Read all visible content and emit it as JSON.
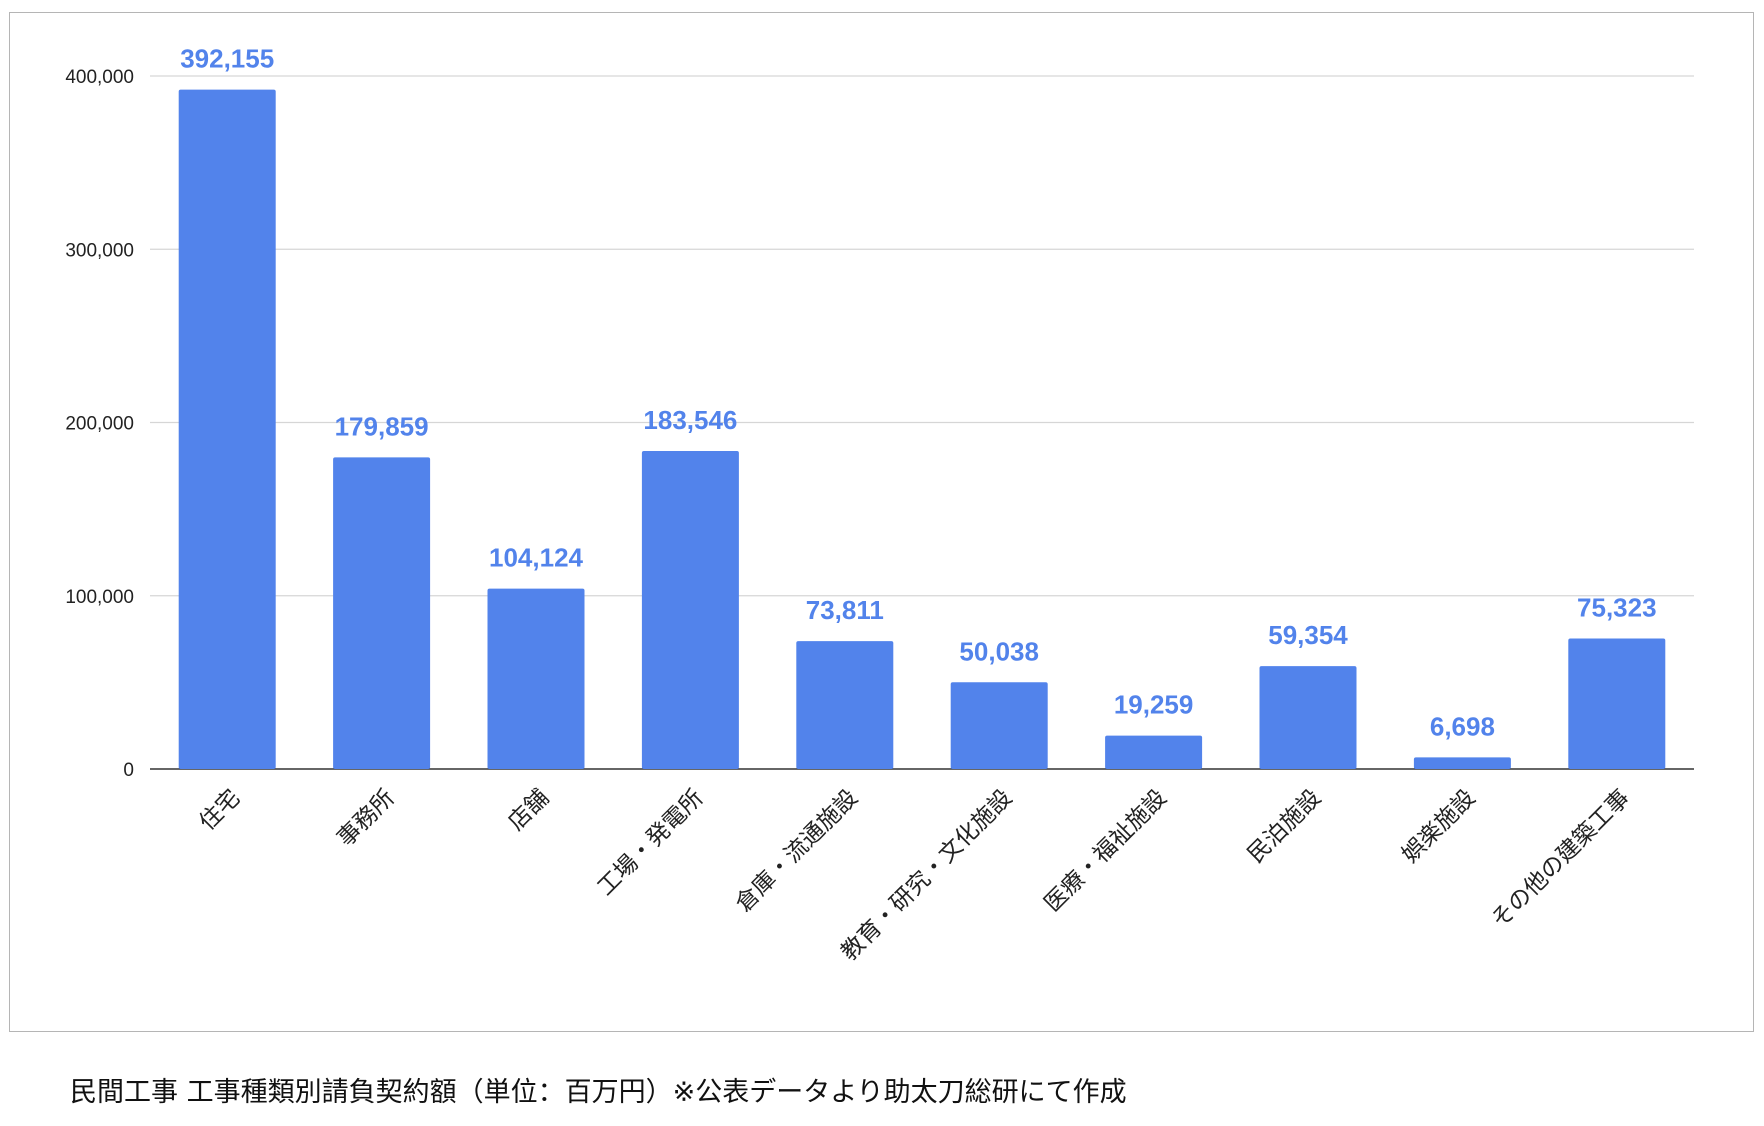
{
  "caption": "民間工事 工事種類別請負契約額（単位：百万円）※公表データより助太刀総研にて作成",
  "colors": {
    "bar": "#5283eb",
    "data_label": "#5283eb",
    "gridline": "#d6d6d6",
    "baseline": "#333333",
    "tick_text": "#222222"
  },
  "chart_data": {
    "type": "bar",
    "title": "",
    "xlabel": "",
    "ylabel": "",
    "ylim": [
      0,
      400000
    ],
    "yticks": [
      0,
      100000,
      200000,
      300000,
      400000
    ],
    "ytick_labels": [
      "0",
      "100,000",
      "200,000",
      "300,000",
      "400,000"
    ],
    "grid": true,
    "legend": "none",
    "categories": [
      "住宅",
      "事務所",
      "店舗",
      "工場・発電所",
      "倉庫・流通施設",
      "教育・研究・文化施設",
      "医療・福祉施設",
      "民泊施設",
      "娯楽施設",
      "その他の建築工事"
    ],
    "values": [
      392155,
      179859,
      104124,
      183546,
      73811,
      50038,
      19259,
      59354,
      6698,
      75323
    ],
    "data_labels": [
      "392,155",
      "179,859",
      "104,124",
      "183,546",
      "73,811",
      "50,038",
      "19,259",
      "59,354",
      "6,698",
      "75,323"
    ]
  }
}
